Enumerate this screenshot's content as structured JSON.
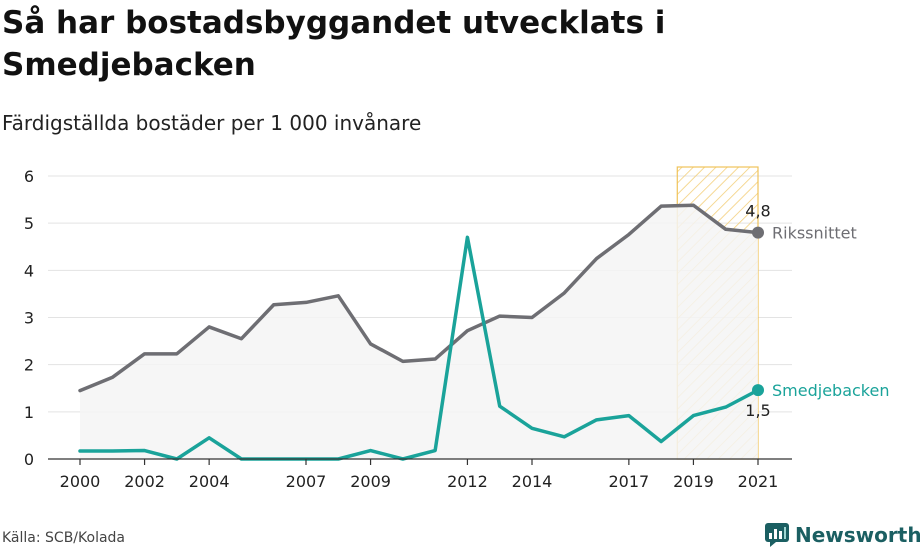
{
  "title": "Så har bostadsbyggandet utvecklats i Smedjebacken",
  "subtitle": "Färdigställda bostäder per 1 000 invånare",
  "source": "Källa: SCB/Kolada",
  "brand": "Newsworthy",
  "colors": {
    "national": "#6e6e73",
    "local": "#1aa39a",
    "highlight_border": "#f0c35a",
    "area_fill": "#f4f4f5"
  },
  "chart_data": {
    "type": "line",
    "x": [
      2000,
      2001,
      2002,
      2003,
      2004,
      2005,
      2006,
      2007,
      2008,
      2009,
      2010,
      2011,
      2012,
      2013,
      2014,
      2015,
      2016,
      2017,
      2018,
      2019,
      2020,
      2021
    ],
    "x_tick_labels": [
      "2000",
      "2002",
      "2004",
      "2007",
      "2009",
      "2012",
      "2014",
      "2017",
      "2019",
      "2021"
    ],
    "ylim": [
      0,
      6
    ],
    "y_ticks": [
      0,
      1,
      2,
      3,
      4,
      5,
      6
    ],
    "series": [
      {
        "name": "Rikssnittet",
        "end_label": "4,8",
        "values": [
          1.45,
          1.73,
          2.23,
          2.23,
          2.8,
          2.55,
          3.27,
          3.32,
          3.46,
          2.44,
          2.07,
          2.12,
          2.72,
          3.03,
          3.0,
          3.52,
          4.25,
          4.76,
          5.36,
          5.38,
          4.87,
          4.8
        ]
      },
      {
        "name": "Smedjebacken",
        "end_label": "1,5",
        "values": [
          0.17,
          0.17,
          0.18,
          0.0,
          0.45,
          0.0,
          0.0,
          0.0,
          0.0,
          0.18,
          0.0,
          0.18,
          4.7,
          1.12,
          0.65,
          0.47,
          0.83,
          0.92,
          0.37,
          0.92,
          1.1,
          1.46
        ]
      }
    ],
    "highlight_range": [
      2018.5,
      2021
    ],
    "grid": true,
    "legend": "direct labels at line ends"
  }
}
